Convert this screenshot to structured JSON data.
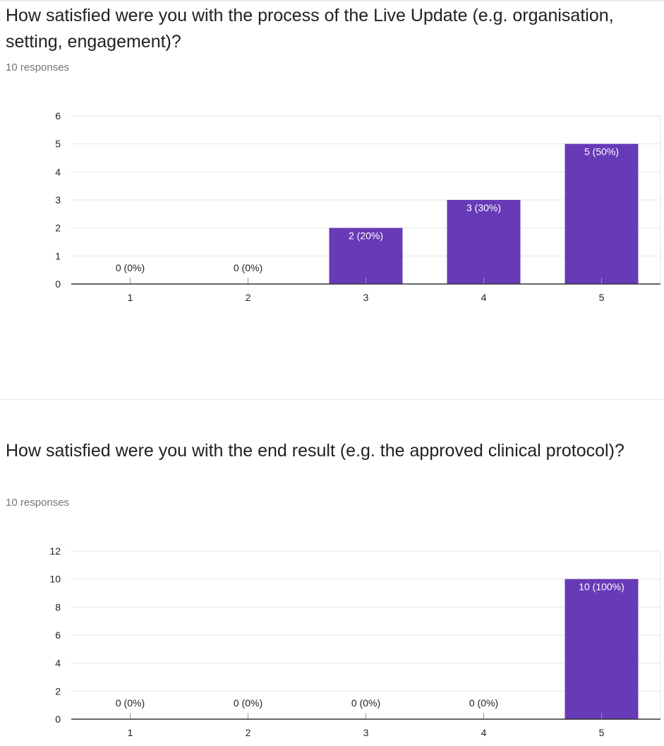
{
  "questions": [
    {
      "title": "How satisfied were you with the process of the Live Update (e.g. organisation, setting, engagement)?",
      "responses_label": "10 responses"
    },
    {
      "title": "How satisfied were you with the end result (e.g. the approved clinical protocol)?",
      "responses_label": "10 responses"
    }
  ],
  "colors": {
    "bar": "#673ab7",
    "grid": "#e6e6e6",
    "axis": "#333333",
    "label_dark": "#222222",
    "label_light": "#ffffff"
  },
  "chart_data": [
    {
      "type": "bar",
      "title": "How satisfied were you with the process of the Live Update (e.g. organisation, setting, engagement)?",
      "categories": [
        "1",
        "2",
        "3",
        "4",
        "5"
      ],
      "values": [
        0,
        0,
        2,
        3,
        5
      ],
      "data_labels": [
        "0 (0%)",
        "0 (0%)",
        "2 (20%)",
        "3 (30%)",
        "5 (50%)"
      ],
      "y_ticks": [
        0,
        1,
        2,
        3,
        4,
        5,
        6
      ],
      "ylim": [
        0,
        6
      ],
      "xlabel": "",
      "ylabel": "",
      "grid": true
    },
    {
      "type": "bar",
      "title": "How satisfied were you with the end result (e.g. the approved clinical protocol)?",
      "categories": [
        "1",
        "2",
        "3",
        "4",
        "5"
      ],
      "values": [
        0,
        0,
        0,
        0,
        10
      ],
      "data_labels": [
        "0 (0%)",
        "0 (0%)",
        "0 (0%)",
        "0 (0%)",
        "10 (100%)"
      ],
      "y_ticks": [
        0,
        2,
        4,
        6,
        8,
        10,
        12
      ],
      "ylim": [
        0,
        12
      ],
      "xlabel": "",
      "ylabel": "",
      "grid": true
    }
  ]
}
